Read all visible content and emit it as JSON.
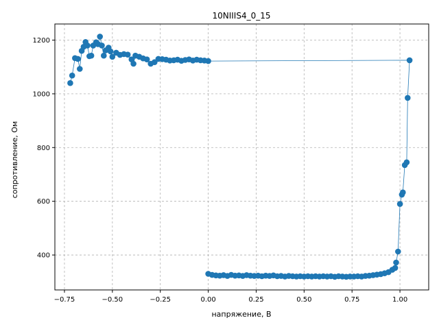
{
  "chart_data": {
    "type": "line",
    "title": "10NIIIS4_0_15",
    "xlabel": "напряжение, В",
    "ylabel": "сопротивление, Ом",
    "xlim": [
      -0.8,
      1.15
    ],
    "ylim": [
      270,
      1260
    ],
    "xticks": [
      -0.75,
      -0.5,
      -0.25,
      0.0,
      0.25,
      0.5,
      0.75,
      1.0
    ],
    "xtick_labels": [
      "−0.75",
      "−0.50",
      "−0.25",
      "0.00",
      "0.25",
      "0.50",
      "0.75",
      "1.00"
    ],
    "yticks": [
      400,
      600,
      800,
      1000,
      1200
    ],
    "ytick_labels": [
      "400",
      "600",
      "800",
      "1000",
      "1200"
    ],
    "grid": true,
    "series_color": "#1f77b4",
    "series": [
      {
        "points": [
          [
            0.0,
            330
          ],
          [
            0.02,
            326
          ],
          [
            0.04,
            324
          ],
          [
            0.06,
            323
          ],
          [
            0.08,
            325
          ],
          [
            0.1,
            322
          ],
          [
            0.12,
            326
          ],
          [
            0.14,
            323
          ],
          [
            0.16,
            324
          ],
          [
            0.18,
            322
          ],
          [
            0.2,
            325
          ],
          [
            0.22,
            323
          ],
          [
            0.24,
            322
          ],
          [
            0.26,
            323
          ],
          [
            0.28,
            321
          ],
          [
            0.3,
            323
          ],
          [
            0.32,
            322
          ],
          [
            0.34,
            324
          ],
          [
            0.36,
            321
          ],
          [
            0.38,
            322
          ],
          [
            0.4,
            320
          ],
          [
            0.42,
            322
          ],
          [
            0.44,
            321
          ],
          [
            0.46,
            320
          ],
          [
            0.48,
            321
          ],
          [
            0.5,
            320
          ],
          [
            0.52,
            321
          ],
          [
            0.54,
            320
          ],
          [
            0.56,
            321
          ],
          [
            0.58,
            320
          ],
          [
            0.6,
            321
          ],
          [
            0.62,
            320
          ],
          [
            0.64,
            321
          ],
          [
            0.66,
            319
          ],
          [
            0.68,
            321
          ],
          [
            0.7,
            320
          ],
          [
            0.72,
            319
          ],
          [
            0.74,
            320
          ],
          [
            0.76,
            320
          ],
          [
            0.78,
            321
          ],
          [
            0.8,
            320
          ],
          [
            0.82,
            322
          ],
          [
            0.84,
            323
          ],
          [
            0.86,
            325
          ],
          [
            0.88,
            327
          ],
          [
            0.9,
            329
          ],
          [
            0.92,
            332
          ],
          [
            0.94,
            336
          ],
          [
            0.96,
            345
          ],
          [
            0.975,
            352
          ],
          [
            0.98,
            372
          ],
          [
            0.99,
            413
          ],
          [
            1.0,
            590
          ],
          [
            1.01,
            625
          ],
          [
            1.015,
            633
          ],
          [
            1.025,
            735
          ],
          [
            1.035,
            745
          ],
          [
            1.04,
            985
          ],
          [
            1.05,
            1125
          ],
          [
            0.0,
            1122
          ],
          [
            -0.02,
            1124
          ],
          [
            -0.04,
            1125
          ],
          [
            -0.06,
            1127
          ],
          [
            -0.08,
            1124
          ],
          [
            -0.1,
            1128
          ],
          [
            -0.12,
            1126
          ],
          [
            -0.14,
            1123
          ],
          [
            -0.16,
            1127
          ],
          [
            -0.18,
            1125
          ],
          [
            -0.2,
            1124
          ],
          [
            -0.22,
            1127
          ],
          [
            -0.24,
            1129
          ],
          [
            -0.26,
            1130
          ],
          [
            -0.28,
            1118
          ],
          [
            -0.3,
            1112
          ],
          [
            -0.32,
            1128
          ],
          [
            -0.34,
            1132
          ],
          [
            -0.36,
            1138
          ],
          [
            -0.38,
            1142
          ],
          [
            -0.39,
            1112
          ],
          [
            -0.4,
            1128
          ],
          [
            -0.42,
            1146
          ],
          [
            -0.44,
            1148
          ],
          [
            -0.46,
            1145
          ],
          [
            -0.48,
            1153
          ],
          [
            -0.5,
            1138
          ],
          [
            -0.51,
            1158
          ],
          [
            -0.52,
            1172
          ],
          [
            -0.535,
            1162
          ],
          [
            -0.545,
            1142
          ],
          [
            -0.555,
            1180
          ],
          [
            -0.565,
            1213
          ],
          [
            -0.575,
            1185
          ],
          [
            -0.585,
            1192
          ],
          [
            -0.6,
            1180
          ],
          [
            -0.61,
            1142
          ],
          [
            -0.62,
            1140
          ],
          [
            -0.63,
            1180
          ],
          [
            -0.64,
            1193
          ],
          [
            -0.65,
            1175
          ],
          [
            -0.66,
            1160
          ],
          [
            -0.67,
            1093
          ],
          [
            -0.68,
            1130
          ],
          [
            -0.695,
            1133
          ],
          [
            -0.71,
            1068
          ],
          [
            -0.72,
            1040
          ]
        ]
      }
    ]
  }
}
